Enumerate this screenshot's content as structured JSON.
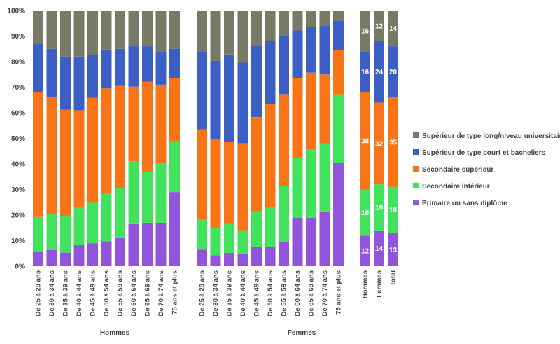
{
  "chart_data": {
    "type": "bar",
    "stacked": true,
    "ylim": [
      0,
      100
    ],
    "y_ticks": [
      "0%",
      "10%",
      "20%",
      "30%",
      "40%",
      "50%",
      "60%",
      "70%",
      "80%",
      "90%",
      "100%"
    ],
    "grid": false,
    "legend_position": "right",
    "groups": [
      {
        "label": "Hommes",
        "categories": [
          "De 25 à 29 ans",
          "De 30 à 34 ans",
          "De 35 à 39 ans",
          "De 40 à 44 ans",
          "De 45 à 49 ans",
          "De 50 à 54 ans",
          "De 55 à 59 ans",
          "De 60 à 64 ans",
          "De 65 à 69 ans",
          "De 70 à 74 ans",
          "75 ans et plus"
        ],
        "series": [
          {
            "name": "Primaire ou sans diplôme",
            "values": [
              5.5,
              6.3,
              5.3,
              8.5,
              9.0,
              9.8,
              11.3,
              16.5,
              17.0,
              17.0,
              29.0
            ]
          },
          {
            "name": "Secondaire inférieur",
            "values": [
              13.7,
              14.2,
              14.4,
              14.3,
              15.8,
              18.7,
              19.2,
              24.5,
              19.8,
              23.4,
              19.8
            ]
          },
          {
            "name": "Secondaire supérieur",
            "values": [
              48.8,
              45.5,
              41.5,
              38.2,
              41.0,
              41.0,
              40.0,
              29.2,
              35.4,
              30.6,
              24.7
            ]
          },
          {
            "name": "Supérieur de type court et bacheliers",
            "values": [
              19.0,
              19.0,
              20.8,
              21.0,
              16.8,
              15.2,
              14.5,
              15.8,
              13.8,
              13.0,
              11.5
            ]
          },
          {
            "name": "Supérieur de type long/niveau universitaire",
            "values": [
              13.0,
              15.0,
              18.0,
              18.0,
              17.4,
              15.3,
              15.0,
              14.0,
              14.0,
              16.0,
              15.0
            ]
          }
        ]
      },
      {
        "label": "Femmes",
        "categories": [
          "De 25 à 29 ans",
          "De 30 à 34 ans",
          "De 35 à 39 ans",
          "De 40 à 44 ans",
          "De 45 à 49 ans",
          "De 50 à 54 ans",
          "De 55 à 59 ans",
          "De 60 à 64 ans",
          "De 65 à 69 ans",
          "De 70 à 74 ans",
          "75 ans et plus"
        ],
        "series": [
          {
            "name": "Primaire ou sans diplôme",
            "values": [
              6.5,
              4.3,
              5.2,
              5.0,
              7.5,
              7.4,
              9.4,
              19.0,
              18.9,
              21.4,
              40.5
            ]
          },
          {
            "name": "Secondaire inférieur",
            "values": [
              12.0,
              10.5,
              11.3,
              9.1,
              14.0,
              15.8,
              22.1,
              23.3,
              27.0,
              26.6,
              26.7
            ]
          },
          {
            "name": "Secondaire supérieur",
            "values": [
              35.0,
              35.0,
              32.0,
              34.0,
              36.8,
              40.3,
              35.8,
              31.4,
              29.8,
              27.0,
              17.3
            ]
          },
          {
            "name": "Supérieur de type court et bacheliers",
            "values": [
              30.5,
              30.5,
              34.3,
              31.5,
              28.0,
              24.5,
              23.0,
              18.5,
              17.8,
              19.2,
              11.5
            ]
          },
          {
            "name": "Supérieur de type long/niveau universitaire",
            "values": [
              16.0,
              19.7,
              17.2,
              20.4,
              13.7,
              12.0,
              9.7,
              7.8,
              6.5,
              5.8,
              4.0
            ]
          }
        ]
      },
      {
        "label": "",
        "categories": [
          "Hommes",
          "Femmes",
          "Total"
        ],
        "series": [
          {
            "name": "Primaire ou sans diplôme",
            "values": [
              12,
              14,
              13
            ]
          },
          {
            "name": "Secondaire inférieur",
            "values": [
              18,
              18,
              18
            ]
          },
          {
            "name": "Secondaire supérieur",
            "values": [
              38,
              32,
              35
            ]
          },
          {
            "name": "Supérieur de type court et bacheliers",
            "values": [
              16,
              24,
              20
            ]
          },
          {
            "name": "Supérieur de type long/niveau universitaire",
            "values": [
              16,
              12,
              14
            ]
          }
        ],
        "show_value_labels": true
      }
    ],
    "legend": [
      {
        "name": "Supérieur de type long/niveau universitaire",
        "color": "#767A67"
      },
      {
        "name": "Supérieur de type court et bacheliers",
        "color": "#3B5FC4"
      },
      {
        "name": "Secondaire supérieur",
        "color": "#F87416"
      },
      {
        "name": "Secondaire inférieur",
        "color": "#41E35C"
      },
      {
        "name": "Primaire ou sans diplôme",
        "color": "#9055DA"
      }
    ],
    "series_colors": {
      "Primaire ou sans diplôme": "#9055DA",
      "Secondaire inférieur": "#41E35C",
      "Secondaire supérieur": "#F87416",
      "Supérieur de type court et bacheliers": "#3B5FC4",
      "Supérieur de type long/niveau universitaire": "#767A67"
    }
  }
}
